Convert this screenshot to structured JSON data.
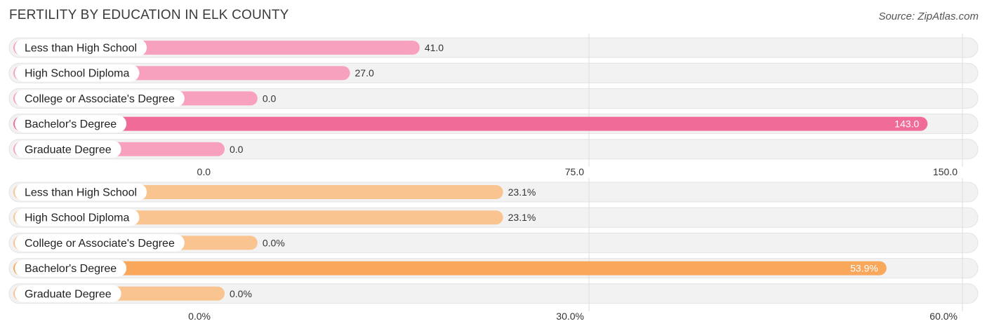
{
  "title": "FERTILITY BY EDUCATION IN ELK COUNTY",
  "source": "Source: ZipAtlas.com",
  "chart_data": [
    {
      "type": "bar",
      "orientation": "horizontal",
      "categories": [
        "Less than High School",
        "High School Diploma",
        "College or Associate's Degree",
        "Bachelor's Degree",
        "Graduate Degree"
      ],
      "values": [
        41.0,
        27.0,
        0.0,
        143.0,
        0.0
      ],
      "value_labels": [
        "41.0",
        "27.0",
        "0.0",
        "143.0",
        "0.0"
      ],
      "xlim": [
        0,
        150
      ],
      "ticks": [
        0,
        75,
        150
      ],
      "tick_labels": [
        "0.0",
        "75.0",
        "150.0"
      ],
      "colors": {
        "bar": "#f7a1bf",
        "highlight": "#f06b98"
      },
      "highlight_index": 3,
      "grid": true
    },
    {
      "type": "bar",
      "orientation": "horizontal",
      "categories": [
        "Less than High School",
        "High School Diploma",
        "College or Associate's Degree",
        "Bachelor's Degree",
        "Graduate Degree"
      ],
      "values": [
        23.1,
        23.1,
        0.0,
        53.9,
        0.0
      ],
      "value_labels": [
        "23.1%",
        "23.1%",
        "0.0%",
        "53.9%",
        "0.0%"
      ],
      "xlim": [
        0,
        60
      ],
      "ticks": [
        0,
        30,
        60
      ],
      "tick_labels": [
        "0.0%",
        "30.0%",
        "60.0%"
      ],
      "colors": {
        "bar": "#f9c490",
        "highlight": "#f8a75b"
      },
      "highlight_index": 3,
      "grid": true
    }
  ],
  "colors": {
    "row_background": "#f2f2f2",
    "row_border": "#e3e3e3",
    "grid": "#dddddd",
    "label_pill": "#ffffff"
  }
}
